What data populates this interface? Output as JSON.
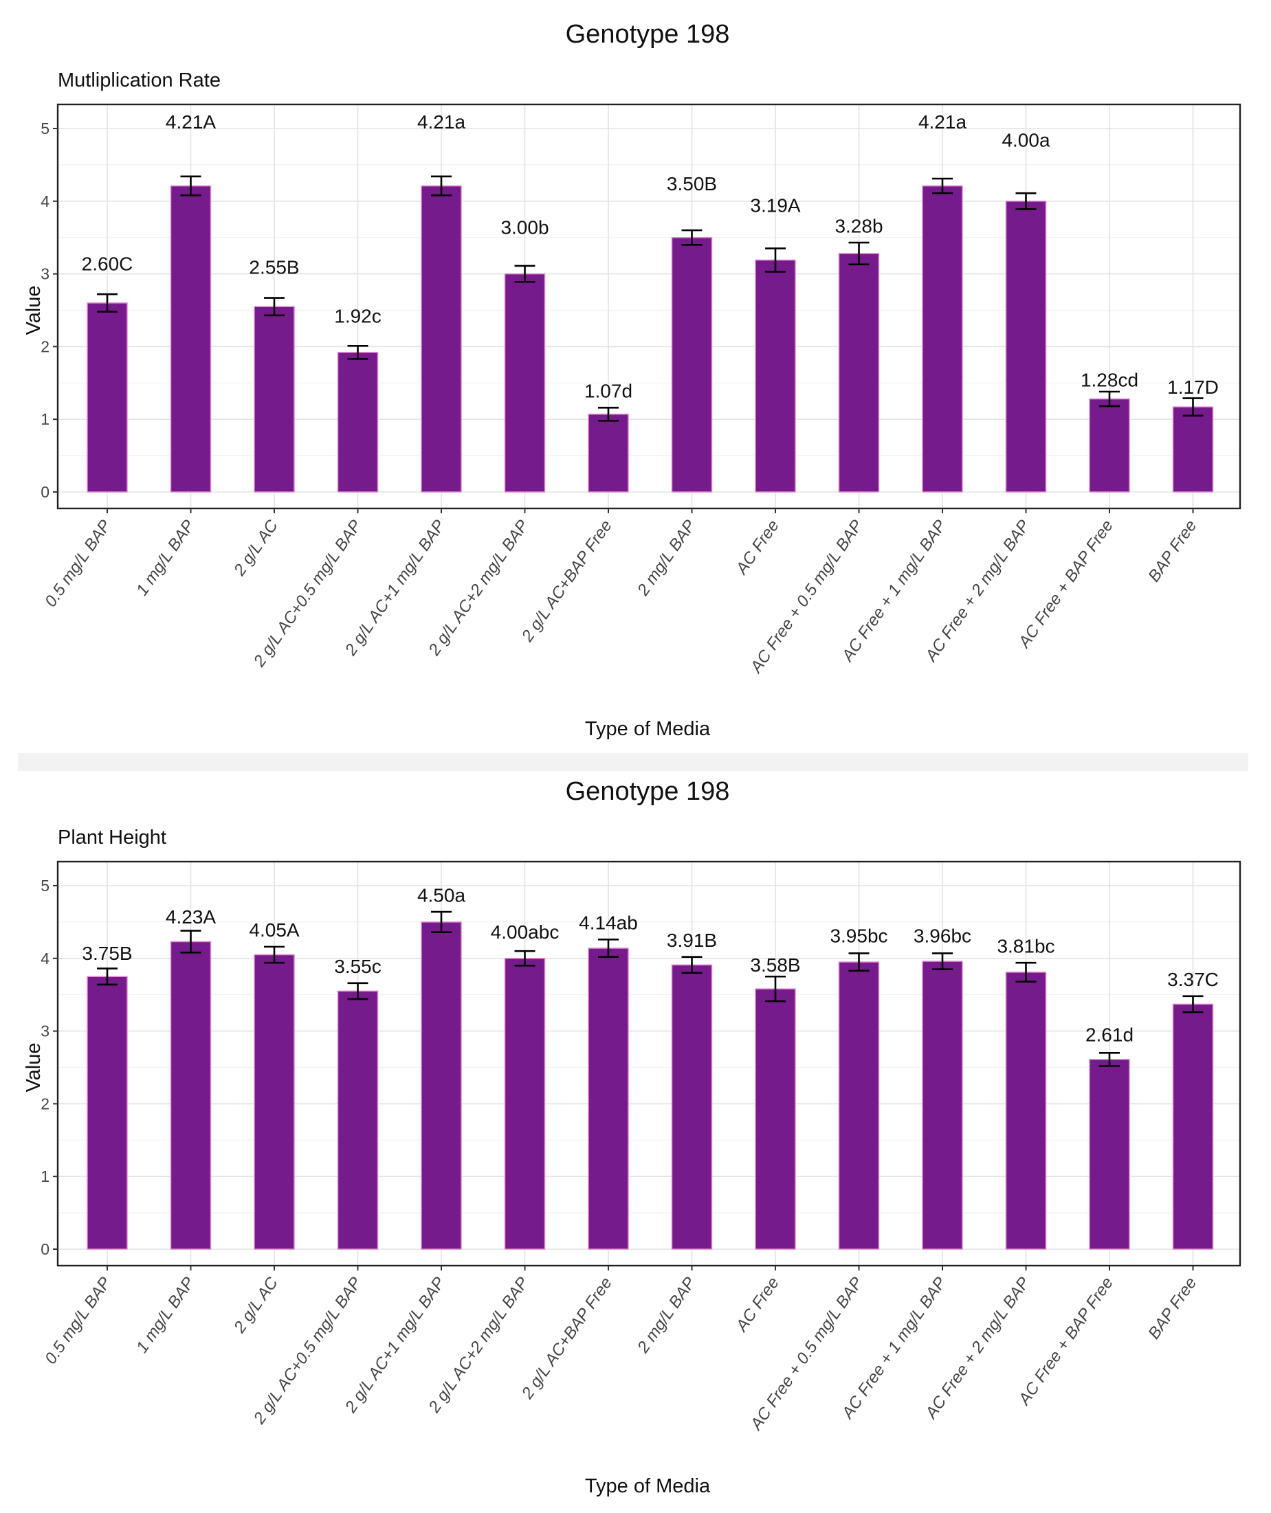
{
  "chart_data": [
    {
      "type": "bar",
      "title": "Genotype 198",
      "subtitle": "Mutliplication Rate",
      "xlabel": "Type of Media",
      "ylabel": "Value",
      "ylim": [
        0,
        5
      ],
      "yticks": [
        "0",
        "1",
        "2",
        "3",
        "4",
        "5"
      ],
      "categories": [
        "0.5 mg/L BAP",
        "1 mg/L BAP",
        "2 g/L AC",
        "2 g/L AC+0.5 mg/L BAP",
        "2 g/L AC+1 mg/L BAP",
        "2 g/L AC+2 mg/L BAP",
        "2 g/L AC+BAP Free",
        "2 mg/L BAP",
        "AC Free",
        "AC Free + 0.5 mg/L BAP",
        "AC Free + 1 mg/L BAP",
        "AC Free + 2 mg/L BAP",
        "AC Free + BAP Free",
        "BAP Free"
      ],
      "values": [
        2.6,
        4.21,
        2.55,
        1.92,
        4.21,
        3.0,
        1.07,
        3.5,
        3.19,
        3.28,
        4.21,
        4.0,
        1.28,
        1.17
      ],
      "errors": [
        0.12,
        0.13,
        0.12,
        0.09,
        0.13,
        0.11,
        0.09,
        0.1,
        0.16,
        0.15,
        0.1,
        0.11,
        0.1,
        0.12
      ],
      "labels": [
        "2.60C",
        "4.21A",
        "2.55B",
        "1.92c",
        "4.21a",
        "3.00b",
        "1.07d",
        "3.50B",
        "3.19A",
        "3.28b",
        "4.21a",
        "4.00a",
        "1.28cd",
        "1.17D"
      ],
      "label_values": [
        3.05,
        5.0,
        3.0,
        2.33,
        5.0,
        3.55,
        1.3,
        4.15,
        3.85,
        3.57,
        5.0,
        4.75,
        1.45,
        1.35
      ],
      "bar_color": "#761b8c"
    },
    {
      "type": "bar",
      "title": "Genotype 198",
      "subtitle": "Plant Height",
      "xlabel": "Type of Media",
      "ylabel": "Value",
      "ylim": [
        0,
        5
      ],
      "yticks": [
        "0",
        "1",
        "2",
        "3",
        "4",
        "5"
      ],
      "categories": [
        "0.5 mg/L BAP",
        "1 mg/L BAP",
        "2 g/L AC",
        "2 g/L AC+0.5 mg/L BAP",
        "2 g/L AC+1 mg/L BAP",
        "2 g/L AC+2 mg/L BAP",
        "2 g/L AC+BAP Free",
        "2 mg/L BAP",
        "AC Free",
        "AC Free + 0.5 mg/L BAP",
        "AC Free + 1 mg/L BAP",
        "AC Free + 2 mg/L BAP",
        "AC Free + BAP Free",
        "BAP Free"
      ],
      "values": [
        3.75,
        4.23,
        4.05,
        3.55,
        4.5,
        4.0,
        4.14,
        3.91,
        3.58,
        3.95,
        3.96,
        3.81,
        2.61,
        3.37
      ],
      "errors": [
        0.11,
        0.15,
        0.11,
        0.11,
        0.14,
        0.1,
        0.12,
        0.11,
        0.17,
        0.12,
        0.11,
        0.13,
        0.09,
        0.11
      ],
      "labels": [
        "3.75B",
        "4.23A",
        "4.05A",
        "3.55c",
        "4.50a",
        "4.00abc",
        "4.14ab",
        "3.91B",
        "3.58B",
        "3.95bc",
        "3.96bc",
        "3.81bc",
        "2.61d",
        "3.37C"
      ],
      "label_values": [
        3.98,
        4.48,
        4.3,
        3.8,
        4.78,
        4.27,
        4.4,
        4.16,
        3.82,
        4.22,
        4.22,
        4.08,
        2.86,
        3.62
      ],
      "bar_color": "#761b8c"
    }
  ]
}
